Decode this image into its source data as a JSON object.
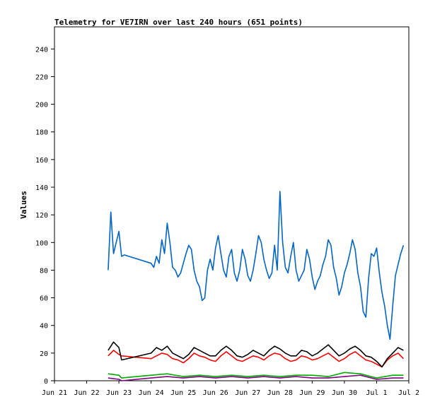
{
  "chart_data": {
    "type": "line",
    "title": "Telemetry for VE7IRN over last 240 hours (651 points)",
    "xlabel": "",
    "ylabel": "Values",
    "xlim": [
      "2023-06-21",
      "2023-07-02"
    ],
    "ylim": [
      0,
      256
    ],
    "x_ticks": [
      "Jun 21",
      "Jun 22",
      "Jun 23",
      "Jun 24",
      "Jun 25",
      "Jun 26",
      "Jun 27",
      "Jun 28",
      "Jun 29",
      "Jun 30",
      "Jul 1",
      "Jul 2"
    ],
    "y_ticks": [
      0,
      20,
      40,
      60,
      80,
      100,
      120,
      140,
      160,
      180,
      200,
      220,
      240
    ],
    "grid": false,
    "legend": "none",
    "series": [
      {
        "color": "#0066cc",
        "x": [
          "2023-06-22 16:00",
          "2023-06-22 18:00",
          "2023-06-22 20:00",
          "2023-06-22 22:00",
          "2023-06-23 00:00",
          "2023-06-23 02:00",
          "2023-06-23 04:00",
          "2023-06-24 00:00",
          "2023-06-24 02:00",
          "2023-06-24 04:00",
          "2023-06-24 06:00",
          "2023-06-24 08:00",
          "2023-06-24 10:00",
          "2023-06-24 12:00",
          "2023-06-24 14:00",
          "2023-06-24 16:00",
          "2023-06-24 18:00",
          "2023-06-24 20:00",
          "2023-06-24 22:00",
          "2023-06-25 00:00",
          "2023-06-25 02:00",
          "2023-06-25 04:00",
          "2023-06-25 06:00",
          "2023-06-25 08:00",
          "2023-06-25 10:00",
          "2023-06-25 12:00",
          "2023-06-25 14:00",
          "2023-06-25 16:00",
          "2023-06-25 18:00",
          "2023-06-25 20:00",
          "2023-06-25 22:00",
          "2023-06-26 00:00",
          "2023-06-26 02:00",
          "2023-06-26 04:00",
          "2023-06-26 06:00",
          "2023-06-26 08:00",
          "2023-06-26 10:00",
          "2023-06-26 12:00",
          "2023-06-26 14:00",
          "2023-06-26 16:00",
          "2023-06-26 18:00",
          "2023-06-26 20:00",
          "2023-06-26 22:00",
          "2023-06-27 00:00",
          "2023-06-27 02:00",
          "2023-06-27 04:00",
          "2023-06-27 06:00",
          "2023-06-27 08:00",
          "2023-06-27 10:00",
          "2023-06-27 12:00",
          "2023-06-27 14:00",
          "2023-06-27 16:00",
          "2023-06-27 18:00",
          "2023-06-27 20:00",
          "2023-06-27 22:00",
          "2023-06-28 00:00",
          "2023-06-28 02:00",
          "2023-06-28 04:00",
          "2023-06-28 06:00",
          "2023-06-28 08:00",
          "2023-06-28 10:00",
          "2023-06-28 12:00",
          "2023-06-28 14:00",
          "2023-06-28 16:00",
          "2023-06-28 18:00",
          "2023-06-28 20:00",
          "2023-06-28 22:00",
          "2023-06-29 00:00",
          "2023-06-29 02:00",
          "2023-06-29 04:00",
          "2023-06-29 06:00",
          "2023-06-29 08:00",
          "2023-06-29 10:00",
          "2023-06-29 12:00",
          "2023-06-29 14:00",
          "2023-06-29 16:00",
          "2023-06-29 18:00",
          "2023-06-29 20:00",
          "2023-06-29 22:00",
          "2023-06-30 00:00",
          "2023-06-30 02:00",
          "2023-06-30 04:00",
          "2023-06-30 06:00",
          "2023-06-30 08:00",
          "2023-06-30 10:00",
          "2023-06-30 12:00",
          "2023-06-30 14:00",
          "2023-06-30 16:00",
          "2023-06-30 18:00",
          "2023-06-30 20:00",
          "2023-06-30 22:00",
          "2023-07-01 00:00",
          "2023-07-01 02:00",
          "2023-07-01 04:00",
          "2023-07-01 06:00",
          "2023-07-01 08:00",
          "2023-07-01 10:00",
          "2023-07-01 12:00",
          "2023-07-01 14:00",
          "2023-07-01 16:00",
          "2023-07-01 18:00",
          "2023-07-01 20:00"
        ],
        "y": [
          80,
          122,
          92,
          100,
          108,
          90,
          91,
          85,
          82,
          90,
          85,
          102,
          92,
          114,
          100,
          82,
          80,
          75,
          78,
          85,
          92,
          98,
          95,
          80,
          72,
          68,
          58,
          60,
          80,
          88,
          80,
          96,
          105,
          92,
          80,
          75,
          90,
          95,
          78,
          72,
          80,
          95,
          88,
          76,
          72,
          80,
          92,
          105,
          100,
          88,
          80,
          74,
          78,
          98,
          80,
          137,
          100,
          82,
          78,
          90,
          100,
          80,
          72,
          76,
          80,
          95,
          88,
          75,
          66,
          72,
          76,
          84,
          90,
          102,
          98,
          82,
          74,
          62,
          68,
          78,
          84,
          92,
          102,
          95,
          78,
          68,
          50,
          46,
          74,
          92,
          90,
          96,
          78,
          64,
          54,
          40,
          30,
          54,
          76,
          84,
          92,
          98
        ]
      },
      {
        "color": "#ff0000",
        "x": [
          "2023-06-22 16:00",
          "2023-06-22 20:00",
          "2023-06-23 00:00",
          "2023-06-23 02:00",
          "2023-06-24 00:00",
          "2023-06-24 04:00",
          "2023-06-24 08:00",
          "2023-06-24 12:00",
          "2023-06-24 16:00",
          "2023-06-24 20:00",
          "2023-06-25 00:00",
          "2023-06-25 04:00",
          "2023-06-25 08:00",
          "2023-06-25 12:00",
          "2023-06-25 16:00",
          "2023-06-25 20:00",
          "2023-06-26 00:00",
          "2023-06-26 04:00",
          "2023-06-26 08:00",
          "2023-06-26 12:00",
          "2023-06-26 16:00",
          "2023-06-26 20:00",
          "2023-06-27 00:00",
          "2023-06-27 04:00",
          "2023-06-27 08:00",
          "2023-06-27 12:00",
          "2023-06-27 16:00",
          "2023-06-27 20:00",
          "2023-06-28 00:00",
          "2023-06-28 04:00",
          "2023-06-28 08:00",
          "2023-06-28 12:00",
          "2023-06-28 16:00",
          "2023-06-28 20:00",
          "2023-06-29 00:00",
          "2023-06-29 04:00",
          "2023-06-29 08:00",
          "2023-06-29 12:00",
          "2023-06-29 16:00",
          "2023-06-29 20:00",
          "2023-06-30 00:00",
          "2023-06-30 04:00",
          "2023-06-30 08:00",
          "2023-06-30 12:00",
          "2023-06-30 16:00",
          "2023-06-30 20:00",
          "2023-07-01 00:00",
          "2023-07-01 04:00",
          "2023-07-01 08:00",
          "2023-07-01 12:00",
          "2023-07-01 16:00",
          "2023-07-01 20:00"
        ],
        "y": [
          18,
          22,
          19,
          18,
          16,
          18,
          20,
          19,
          16,
          15,
          13,
          16,
          20,
          18,
          17,
          15,
          14,
          18,
          21,
          18,
          15,
          14,
          16,
          18,
          17,
          15,
          18,
          20,
          19,
          16,
          14,
          15,
          18,
          17,
          15,
          16,
          18,
          20,
          17,
          14,
          16,
          19,
          21,
          18,
          15,
          14,
          12,
          10,
          15,
          18,
          20,
          16
        ]
      },
      {
        "color": "#000000",
        "x": [
          "2023-06-22 16:00",
          "2023-06-22 20:00",
          "2023-06-23 00:00",
          "2023-06-23 02:00",
          "2023-06-24 00:00",
          "2023-06-24 04:00",
          "2023-06-24 08:00",
          "2023-06-24 12:00",
          "2023-06-24 16:00",
          "2023-06-24 20:00",
          "2023-06-25 00:00",
          "2023-06-25 04:00",
          "2023-06-25 08:00",
          "2023-06-25 12:00",
          "2023-06-25 16:00",
          "2023-06-25 20:00",
          "2023-06-26 00:00",
          "2023-06-26 04:00",
          "2023-06-26 08:00",
          "2023-06-26 12:00",
          "2023-06-26 16:00",
          "2023-06-26 20:00",
          "2023-06-27 00:00",
          "2023-06-27 04:00",
          "2023-06-27 08:00",
          "2023-06-27 12:00",
          "2023-06-27 16:00",
          "2023-06-27 20:00",
          "2023-06-28 00:00",
          "2023-06-28 04:00",
          "2023-06-28 08:00",
          "2023-06-28 12:00",
          "2023-06-28 16:00",
          "2023-06-28 20:00",
          "2023-06-29 00:00",
          "2023-06-29 04:00",
          "2023-06-29 08:00",
          "2023-06-29 12:00",
          "2023-06-29 16:00",
          "2023-06-29 20:00",
          "2023-06-30 00:00",
          "2023-06-30 04:00",
          "2023-06-30 08:00",
          "2023-06-30 12:00",
          "2023-06-30 16:00",
          "2023-06-30 20:00",
          "2023-07-01 00:00",
          "2023-07-01 04:00",
          "2023-07-01 08:00",
          "2023-07-01 12:00",
          "2023-07-01 16:00",
          "2023-07-01 20:00"
        ],
        "y": [
          22,
          28,
          24,
          15,
          20,
          24,
          22,
          25,
          20,
          18,
          16,
          19,
          24,
          22,
          20,
          18,
          18,
          22,
          25,
          22,
          18,
          17,
          19,
          22,
          20,
          18,
          22,
          25,
          23,
          20,
          18,
          18,
          22,
          21,
          18,
          20,
          23,
          26,
          22,
          18,
          20,
          23,
          25,
          22,
          18,
          17,
          14,
          10,
          16,
          20,
          24,
          22
        ]
      },
      {
        "color": "#00aa00",
        "x": [
          "2023-06-22 16:00",
          "2023-06-23 00:00",
          "2023-06-23 02:00",
          "2023-06-24 00:00",
          "2023-06-24 12:00",
          "2023-06-25 00:00",
          "2023-06-25 12:00",
          "2023-06-26 00:00",
          "2023-06-26 12:00",
          "2023-06-27 00:00",
          "2023-06-27 12:00",
          "2023-06-28 00:00",
          "2023-06-28 12:00",
          "2023-06-29 00:00",
          "2023-06-29 12:00",
          "2023-06-30 00:00",
          "2023-06-30 12:00",
          "2023-07-01 00:00",
          "2023-07-01 12:00",
          "2023-07-01 20:00"
        ],
        "y": [
          5,
          4,
          2,
          4,
          5,
          3,
          4,
          3,
          4,
          3,
          4,
          3,
          4,
          4,
          3,
          6,
          5,
          2,
          4,
          4
        ]
      },
      {
        "color": "#800080",
        "x": [
          "2023-06-22 16:00",
          "2023-06-23 00:00",
          "2023-06-23 02:00",
          "2023-06-24 00:00",
          "2023-06-24 12:00",
          "2023-06-25 00:00",
          "2023-06-25 12:00",
          "2023-06-26 00:00",
          "2023-06-26 12:00",
          "2023-06-27 00:00",
          "2023-06-27 12:00",
          "2023-06-28 00:00",
          "2023-06-28 12:00",
          "2023-06-29 00:00",
          "2023-06-29 12:00",
          "2023-06-30 00:00",
          "2023-06-30 12:00",
          "2023-07-01 00:00",
          "2023-07-01 12:00",
          "2023-07-01 20:00"
        ],
        "y": [
          2,
          1,
          0,
          2,
          3,
          2,
          3,
          2,
          3,
          2,
          3,
          2,
          3,
          2,
          2,
          3,
          4,
          1,
          2,
          2
        ]
      }
    ]
  }
}
